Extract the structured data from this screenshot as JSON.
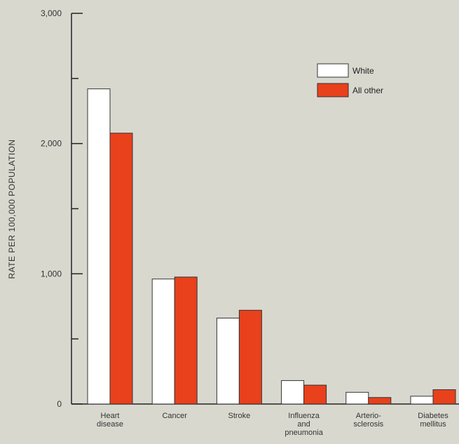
{
  "chart_data": {
    "type": "bar",
    "title": "",
    "xlabel": "",
    "ylabel": "RATE PER 100,000 POPULATION",
    "ylim": [
      0,
      3000
    ],
    "y_ticks": [
      {
        "value": 0,
        "label": "0"
      },
      {
        "value": 500,
        "label": ""
      },
      {
        "value": 1000,
        "label": "1,000"
      },
      {
        "value": 1500,
        "label": ""
      },
      {
        "value": 2000,
        "label": "2,000"
      },
      {
        "value": 2500,
        "label": ""
      },
      {
        "value": 3000,
        "label": "3,000"
      }
    ],
    "categories": [
      [
        "Heart",
        "disease"
      ],
      [
        "Cancer"
      ],
      [
        "Stroke"
      ],
      [
        "Influenza",
        "and",
        "pneumonia"
      ],
      [
        "Arterio-",
        "sclerosis"
      ],
      [
        "Diabetes",
        "mellitus"
      ]
    ],
    "series": [
      {
        "name": "White",
        "color": "#ffffff",
        "values": [
          2420,
          960,
          660,
          180,
          90,
          60
        ]
      },
      {
        "name": "All other",
        "color": "#e8411c",
        "values": [
          2080,
          975,
          720,
          145,
          50,
          110
        ]
      }
    ],
    "legend": {
      "position": "top-right"
    },
    "grid": false
  }
}
